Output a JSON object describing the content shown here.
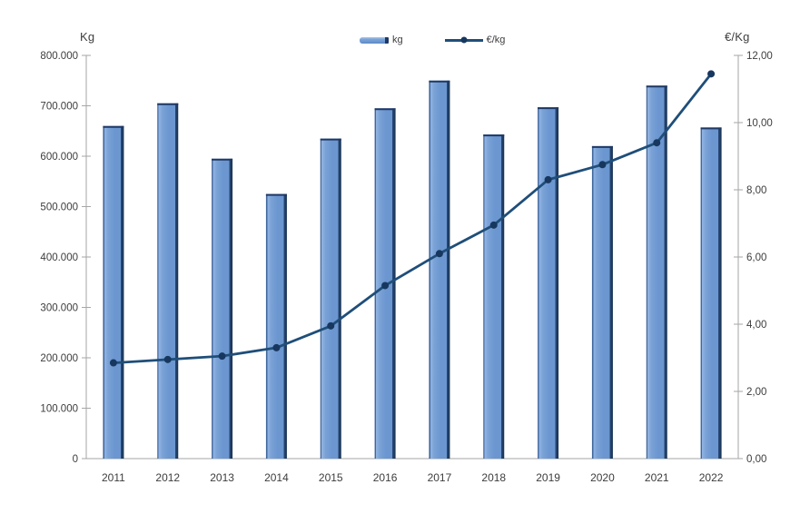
{
  "chart_data": {
    "type": "bar",
    "subtype": "bar-line-combo",
    "categories": [
      "2011",
      "2012",
      "2013",
      "2014",
      "2015",
      "2016",
      "2017",
      "2018",
      "2019",
      "2020",
      "2021",
      "2022"
    ],
    "series": [
      {
        "name": "kg",
        "type": "bar",
        "axis": "left",
        "values": [
          660000,
          705000,
          595000,
          525000,
          635000,
          695000,
          750000,
          643000,
          697000,
          620000,
          740000,
          657000
        ]
      },
      {
        "name": "€/kg",
        "type": "line",
        "axis": "right",
        "values": [
          2.85,
          2.95,
          3.05,
          3.3,
          3.95,
          5.15,
          6.1,
          6.95,
          8.3,
          8.75,
          9.4,
          11.45
        ]
      }
    ],
    "left_axis": {
      "title": "Kg",
      "min": 0,
      "max": 800000,
      "step": 100000,
      "tick_labels": [
        "0",
        "100.000",
        "200.000",
        "300.000",
        "400.000",
        "500.000",
        "600.000",
        "700.000",
        "800.000"
      ]
    },
    "right_axis": {
      "title": "€/Kg",
      "min": 0,
      "max": 12,
      "step": 2,
      "tick_labels": [
        "0,00",
        "2,00",
        "4,00",
        "6,00",
        "8,00",
        "10,00",
        "12,00"
      ]
    },
    "legend_position": "top",
    "grid": false
  },
  "colors": {
    "bar_fill": "#6b96d0",
    "bar_highlight": "#93b5e3",
    "bar_shadow": "#1f3864",
    "line": "#1f4e79",
    "marker": "#17375e",
    "axis_line": "#a6a6a6",
    "text": "#3d3d3d",
    "background": "#ffffff"
  }
}
